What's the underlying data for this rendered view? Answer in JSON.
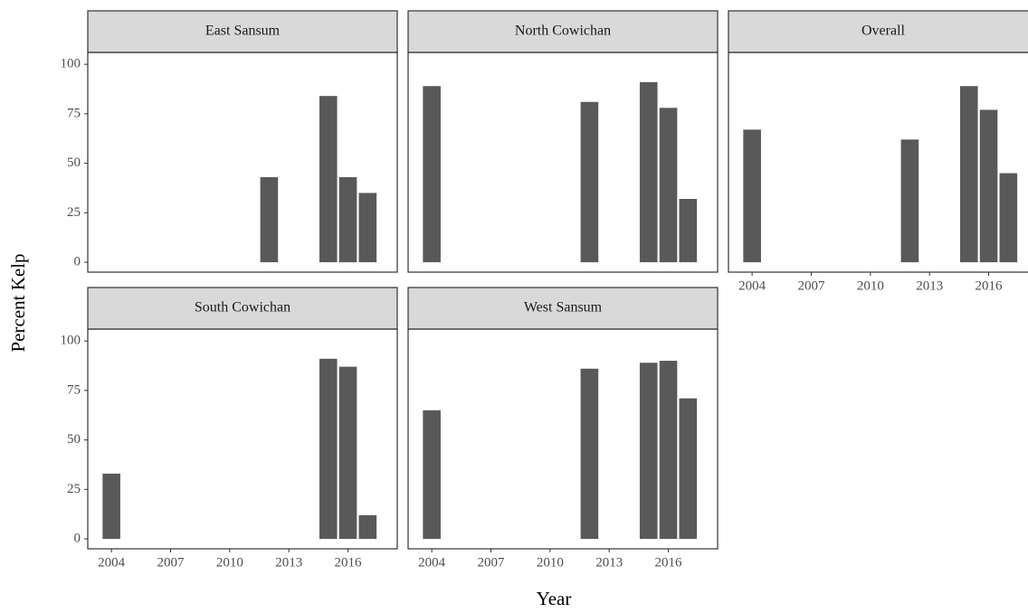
{
  "chart_data": {
    "type": "bar",
    "x_label": "Year",
    "y_label": "Percent Kelp",
    "x": [
      2004,
      2012,
      2015,
      2016,
      2017
    ],
    "color": "#595959",
    "xlim": [
      2002.8,
      2018.5
    ],
    "xticks": [
      2004,
      2007,
      2010,
      2013,
      2016
    ],
    "ylim": [
      -5,
      106
    ],
    "yticks": [
      0,
      25,
      50,
      75,
      100
    ],
    "facets": [
      {
        "title": "East Sansum",
        "values": [
          null,
          43,
          84,
          43,
          35
        ]
      },
      {
        "title": "North Cowichan",
        "values": [
          89,
          81,
          91,
          78,
          32
        ]
      },
      {
        "title": "Overall",
        "values": [
          67,
          62,
          89,
          77,
          45
        ]
      },
      {
        "title": "South Cowichan",
        "values": [
          33,
          null,
          91,
          87,
          12
        ]
      },
      {
        "title": "West Sansum",
        "values": [
          65,
          86,
          89,
          90,
          71
        ]
      }
    ]
  }
}
